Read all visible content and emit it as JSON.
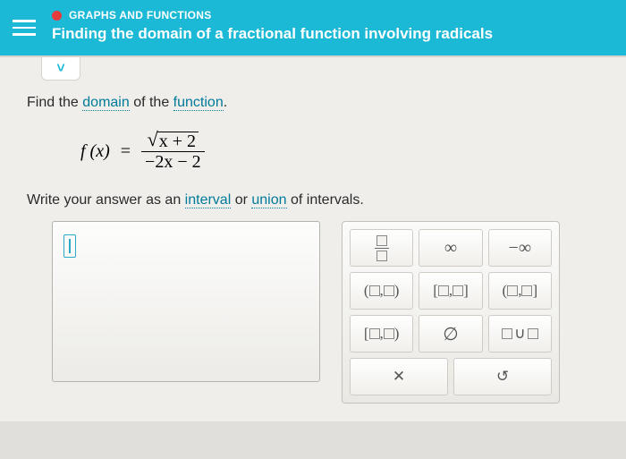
{
  "header": {
    "section": "GRAPHS AND FUNCTIONS",
    "title": "Finding the domain of a fractional function involving radicals"
  },
  "prompt": {
    "prefix": "Find the ",
    "kw1": "domain",
    "mid": " of the ",
    "kw2": "function",
    "suffix": "."
  },
  "formula": {
    "lhs": "f (x)",
    "eq": "=",
    "radicand": "x + 2",
    "denominator": "−2x − 2"
  },
  "prompt2": {
    "prefix": "Write your answer as an ",
    "kw1": "interval",
    "mid": " or ",
    "kw2": "union",
    "suffix": " of intervals."
  },
  "palette": {
    "infinity": "∞",
    "neg_infinity": "−∞",
    "open_open": {
      "l": "(",
      "r": ")"
    },
    "closed_closed": {
      "l": "[",
      "r": "]"
    },
    "open_closed": {
      "l": "(",
      "r": "]"
    },
    "closed_open": {
      "l": "[",
      "r": ")"
    },
    "empty_set": "∅",
    "union_sym": "∪",
    "clear": "✕",
    "undo": "↺"
  }
}
